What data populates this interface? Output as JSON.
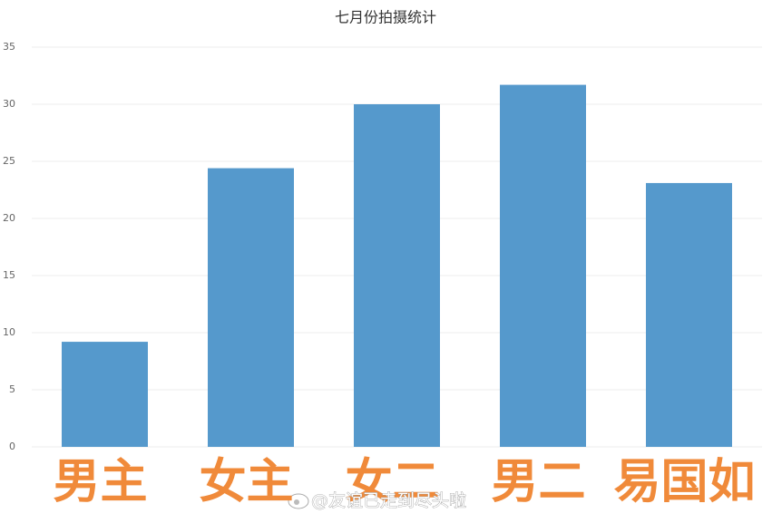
{
  "chart_data": {
    "type": "bar",
    "title": "七月份拍摄统计",
    "categories": [
      "男主",
      "女主",
      "女二",
      "男二",
      "易国如"
    ],
    "values": [
      9.2,
      24.4,
      30.0,
      31.7,
      23.1
    ],
    "color": "#5599cc",
    "ylim": [
      0,
      35
    ],
    "yticks": [
      0,
      5,
      10,
      15,
      20,
      25,
      30,
      35
    ],
    "grid": true,
    "watermark": "@友谊已走到尽头啦"
  }
}
